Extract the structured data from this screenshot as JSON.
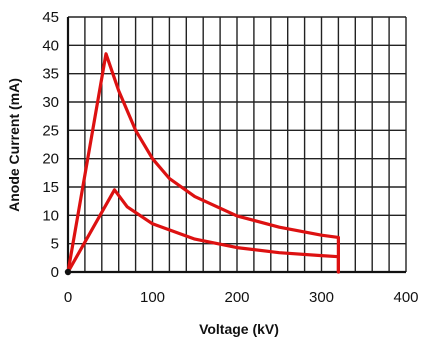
{
  "chart_data": {
    "type": "line",
    "title": "",
    "xlabel": "Voltage (kV)",
    "ylabel": "Anode Current (mA)",
    "xlim": [
      0,
      400
    ],
    "ylim": [
      0,
      45
    ],
    "x_ticks": [
      0,
      100,
      200,
      300,
      400
    ],
    "y_ticks": [
      0,
      5,
      10,
      15,
      20,
      25,
      30,
      35,
      40,
      45
    ],
    "grid": true,
    "x_minor_step": 20,
    "legend": "none",
    "line_color": "#dd1111",
    "series": [
      {
        "points": [
          [
            0,
            0
          ],
          [
            45,
            38.5
          ],
          [
            60,
            32
          ],
          [
            80,
            25
          ],
          [
            100,
            20
          ],
          [
            120,
            16.5
          ],
          [
            150,
            13.3
          ],
          [
            200,
            9.9
          ],
          [
            250,
            7.9
          ],
          [
            300,
            6.5
          ],
          [
            320,
            6.1
          ],
          [
            320,
            0
          ]
        ]
      },
      {
        "points": [
          [
            0,
            0
          ],
          [
            55,
            14.5
          ],
          [
            70,
            11.5
          ],
          [
            100,
            8.5
          ],
          [
            150,
            5.8
          ],
          [
            200,
            4.3
          ],
          [
            250,
            3.4
          ],
          [
            300,
            2.9
          ],
          [
            320,
            2.7
          ],
          [
            320,
            0
          ]
        ]
      }
    ],
    "origin_marker": [
      0,
      0
    ]
  }
}
